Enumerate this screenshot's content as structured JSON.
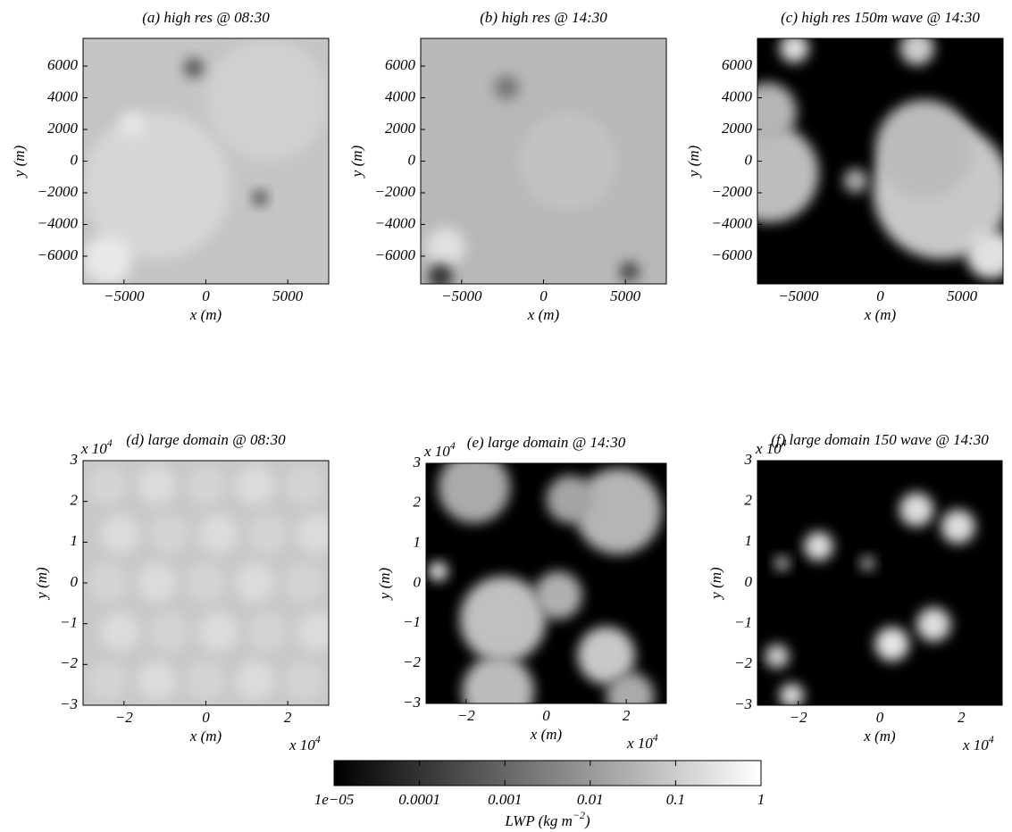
{
  "chart_data": [
    {
      "type": "image",
      "title": "(a) high res @ 08:30",
      "xlabel": "x (m)",
      "ylabel": "y (m)",
      "xlim": [
        -7500,
        7500
      ],
      "ylim": [
        -7750,
        7750
      ],
      "xticks": [
        {
          "value": -5000,
          "label": "−5000"
        },
        0,
        5000
      ],
      "yticks": [
        {
          "value": -6000,
          "label": "−6000"
        },
        {
          "value": -4000,
          "label": "−4000"
        },
        {
          "value": -2000,
          "label": "−2000"
        },
        0,
        2000,
        4000,
        6000
      ]
    },
    {
      "type": "image",
      "title": "(b) high res @ 14:30",
      "xlabel": "x (m)",
      "ylabel": "y (m)",
      "xlim": [
        -7500,
        7500
      ],
      "ylim": [
        -7750,
        7750
      ],
      "xticks": [
        {
          "value": -5000,
          "label": "−5000"
        },
        0,
        5000
      ],
      "yticks": [
        {
          "value": -6000,
          "label": "−6000"
        },
        {
          "value": -4000,
          "label": "−4000"
        },
        {
          "value": -2000,
          "label": "−2000"
        },
        0,
        2000,
        4000,
        6000
      ]
    },
    {
      "type": "image",
      "title": "(c) high res 150m wave @ 14:30",
      "xlabel": "x (m)",
      "ylabel": "y (m)",
      "xlim": [
        -7500,
        7500
      ],
      "ylim": [
        -7750,
        7750
      ],
      "xticks": [
        {
          "value": -5000,
          "label": "−5000"
        },
        0,
        5000
      ],
      "yticks": [
        {
          "value": -6000,
          "label": "−6000"
        },
        {
          "value": -4000,
          "label": "−4000"
        },
        {
          "value": -2000,
          "label": "−2000"
        },
        0,
        2000,
        4000,
        6000
      ]
    },
    {
      "type": "image",
      "title": "(d) large domain @ 08:30",
      "xlabel": "x (m)",
      "ylabel": "y (m)",
      "multiplier": {
        "base": "x 10",
        "exponent": "4"
      },
      "xlim": [
        -3,
        3
      ],
      "ylim": [
        -3,
        3
      ],
      "xticks": [
        {
          "value": -2,
          "label": "−2"
        },
        0,
        2
      ],
      "yticks": [
        {
          "value": -3,
          "label": "−3"
        },
        {
          "value": -2,
          "label": "−2"
        },
        {
          "value": -1,
          "label": "−1"
        },
        0,
        1,
        2,
        3
      ]
    },
    {
      "type": "image",
      "title": "(e) large domain @ 14:30",
      "xlabel": "x (m)",
      "ylabel": "y (m)",
      "multiplier": {
        "base": "x 10",
        "exponent": "4"
      },
      "xlim": [
        -3,
        3
      ],
      "ylim": [
        -3,
        3
      ],
      "xticks": [
        {
          "value": -2,
          "label": "−2"
        },
        0,
        2
      ],
      "yticks": [
        {
          "value": -3,
          "label": "−3"
        },
        {
          "value": -2,
          "label": "−2"
        },
        {
          "value": -1,
          "label": "−1"
        },
        0,
        1,
        2,
        3
      ]
    },
    {
      "type": "image",
      "title": "(f) large domain 150 wave @ 14:30",
      "xlabel": "x (m)",
      "ylabel": "y (m)",
      "multiplier": {
        "base": "x 10",
        "exponent": "4"
      },
      "xlim": [
        -3,
        3
      ],
      "ylim": [
        -3,
        3
      ],
      "xticks": [
        {
          "value": -2,
          "label": "−2"
        },
        0,
        2
      ],
      "yticks": [
        {
          "value": -3,
          "label": "−3"
        },
        {
          "value": -2,
          "label": "−2"
        },
        {
          "value": -1,
          "label": "−1"
        },
        0,
        1,
        2,
        3
      ]
    }
  ],
  "colorbar": {
    "label": {
      "text": "LWP (kg m",
      "exponent": "−2",
      "close": ")"
    },
    "log_scale": true,
    "lim": [
      1e-05,
      1
    ],
    "ticks": [
      {
        "value": 1e-05,
        "label": "1e−05"
      },
      0.0001,
      0.001,
      0.01,
      0.1,
      1
    ]
  }
}
